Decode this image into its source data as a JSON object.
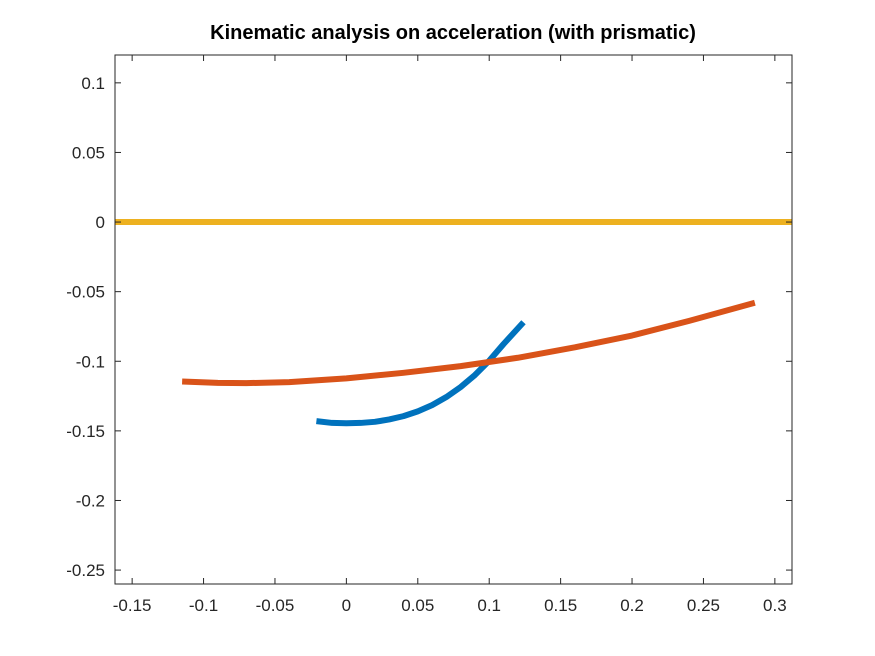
{
  "chart_data": {
    "type": "line",
    "title": "Kinematic analysis on acceleration (with prismatic)",
    "xlabel": "",
    "ylabel": "",
    "xlim": [
      -0.162,
      0.312
    ],
    "ylim": [
      -0.26,
      0.12
    ],
    "xticks": [
      -0.15,
      -0.1,
      -0.05,
      0,
      0.05,
      0.1,
      0.15,
      0.2,
      0.25,
      0.3
    ],
    "xtick_labels": [
      "-0.15",
      "-0.1",
      "-0.05",
      "0",
      "0.05",
      "0.1",
      "0.15",
      "0.2",
      "0.25",
      "0.3"
    ],
    "yticks": [
      0.1,
      0.05,
      0,
      -0.05,
      -0.1,
      -0.15,
      -0.2,
      -0.25
    ],
    "ytick_labels": [
      "0.1",
      "0.05",
      "0",
      "-0.05",
      "-0.1",
      "-0.15",
      "-0.2",
      "-0.25"
    ],
    "grid": false,
    "legend": "none",
    "series": [
      {
        "color": "#0072BD",
        "x": [
          -0.021,
          -0.01,
          0.0,
          0.01,
          0.02,
          0.03,
          0.04,
          0.05,
          0.06,
          0.07,
          0.08,
          0.09,
          0.1,
          0.11,
          0.124
        ],
        "y": [
          -0.143,
          -0.1443,
          -0.1445,
          -0.1443,
          -0.1435,
          -0.1418,
          -0.1394,
          -0.136,
          -0.1315,
          -0.1257,
          -0.1185,
          -0.1099,
          -0.0996,
          -0.0877,
          -0.072
        ]
      },
      {
        "color": "#D95319",
        "x": [
          -0.115,
          -0.09,
          -0.07,
          -0.04,
          0.0,
          0.04,
          0.08,
          0.12,
          0.16,
          0.2,
          0.24,
          0.286
        ],
        "y": [
          -0.1145,
          -0.1155,
          -0.1157,
          -0.115,
          -0.1123,
          -0.1083,
          -0.1035,
          -0.0975,
          -0.09,
          -0.0815,
          -0.071,
          -0.058
        ]
      },
      {
        "color": "#EDB120",
        "x": [
          -0.162,
          0.312
        ],
        "y": [
          0.0,
          0.0
        ]
      }
    ]
  }
}
